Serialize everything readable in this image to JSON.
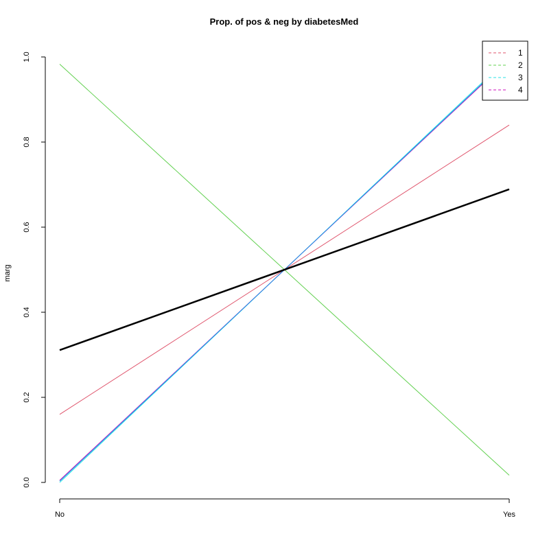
{
  "chart_data": {
    "type": "line",
    "title": "Prop. of pos & neg by diabetesMed",
    "xlabel": "",
    "ylabel": "marg",
    "categories": [
      "No",
      "Yes"
    ],
    "ylim": [
      0,
      1
    ],
    "yticks": [
      "0.0",
      "0.2",
      "0.4",
      "0.6",
      "0.8",
      "1.0"
    ],
    "grid": false,
    "legend_position": "top-right",
    "series": [
      {
        "name": "1",
        "values": [
          0.16,
          0.84
        ],
        "color": "#df536b",
        "width": 1,
        "in_legend": true
      },
      {
        "name": "2",
        "values": [
          0.983,
          0.017
        ],
        "color": "#61d04f",
        "width": 1,
        "in_legend": true
      },
      {
        "name": "3",
        "values": [
          0.0,
          1.0
        ],
        "color": "#28e2e5",
        "width": 1,
        "in_legend": true
      },
      {
        "name": "4",
        "values": [
          0.005,
          0.995
        ],
        "color": "#cd0bbc",
        "width": 1,
        "in_legend": true
      },
      {
        "values": [
          0.003,
          0.997
        ],
        "color": "#2297e6",
        "width": 1,
        "in_legend": false
      },
      {
        "values": [
          0.311,
          0.689
        ],
        "color": "#000000",
        "width": 2.5,
        "in_legend": false
      }
    ]
  }
}
